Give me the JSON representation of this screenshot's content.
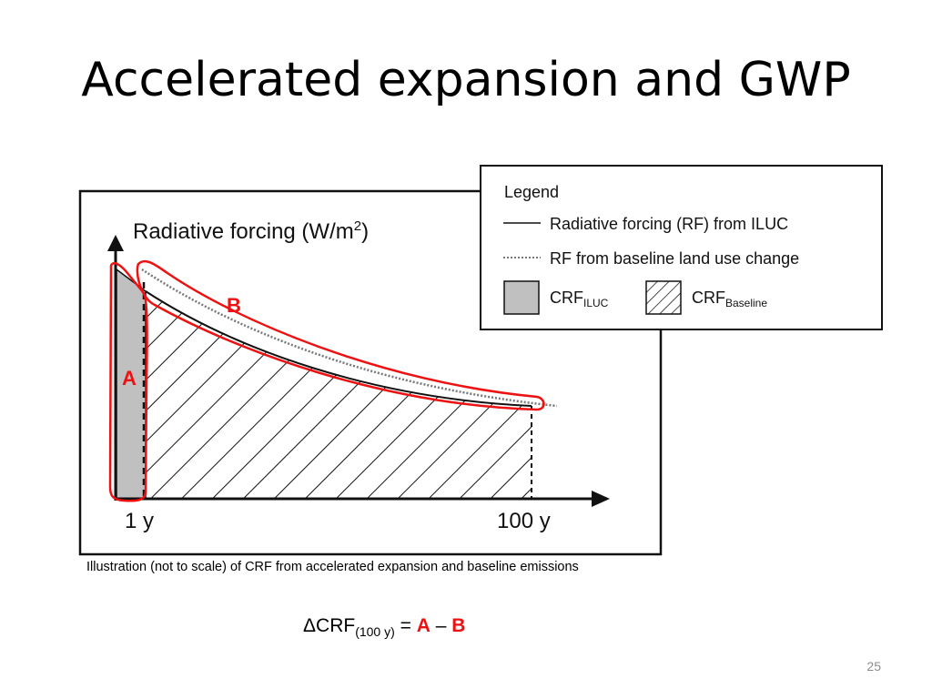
{
  "slide": {
    "title": "Accelerated expansion and GWP",
    "page_number": "25"
  },
  "figure": {
    "y_axis_label": "Radiative forcing (W/m",
    "y_axis_label_sup": "2",
    "y_axis_label_end": ")",
    "x_tick_start": "1 y",
    "x_tick_end": "100 y",
    "marker_a": "A",
    "marker_b": "B",
    "legend": {
      "title": "Legend",
      "rf_iluc": "Radiative forcing (RF)  from ILUC",
      "rf_baseline": "RF from baseline land use change",
      "crf_iluc": "CRF",
      "crf_iluc_sub": "ILUC",
      "crf_baseline": "CRF",
      "crf_baseline_sub": "Baseline"
    },
    "colors": {
      "iluc_fill": "#c0c0c0",
      "highlight": "#ee1111",
      "frame": "#111111"
    }
  },
  "caption": "Illustration (not to scale) of CRF from accelerated expansion and baseline emissions",
  "formula": {
    "prefix": "ΔCRF",
    "subscript": "(100 y)",
    "equals": " = ",
    "term_a": "A",
    "minus": " – ",
    "term_b": "B"
  }
}
